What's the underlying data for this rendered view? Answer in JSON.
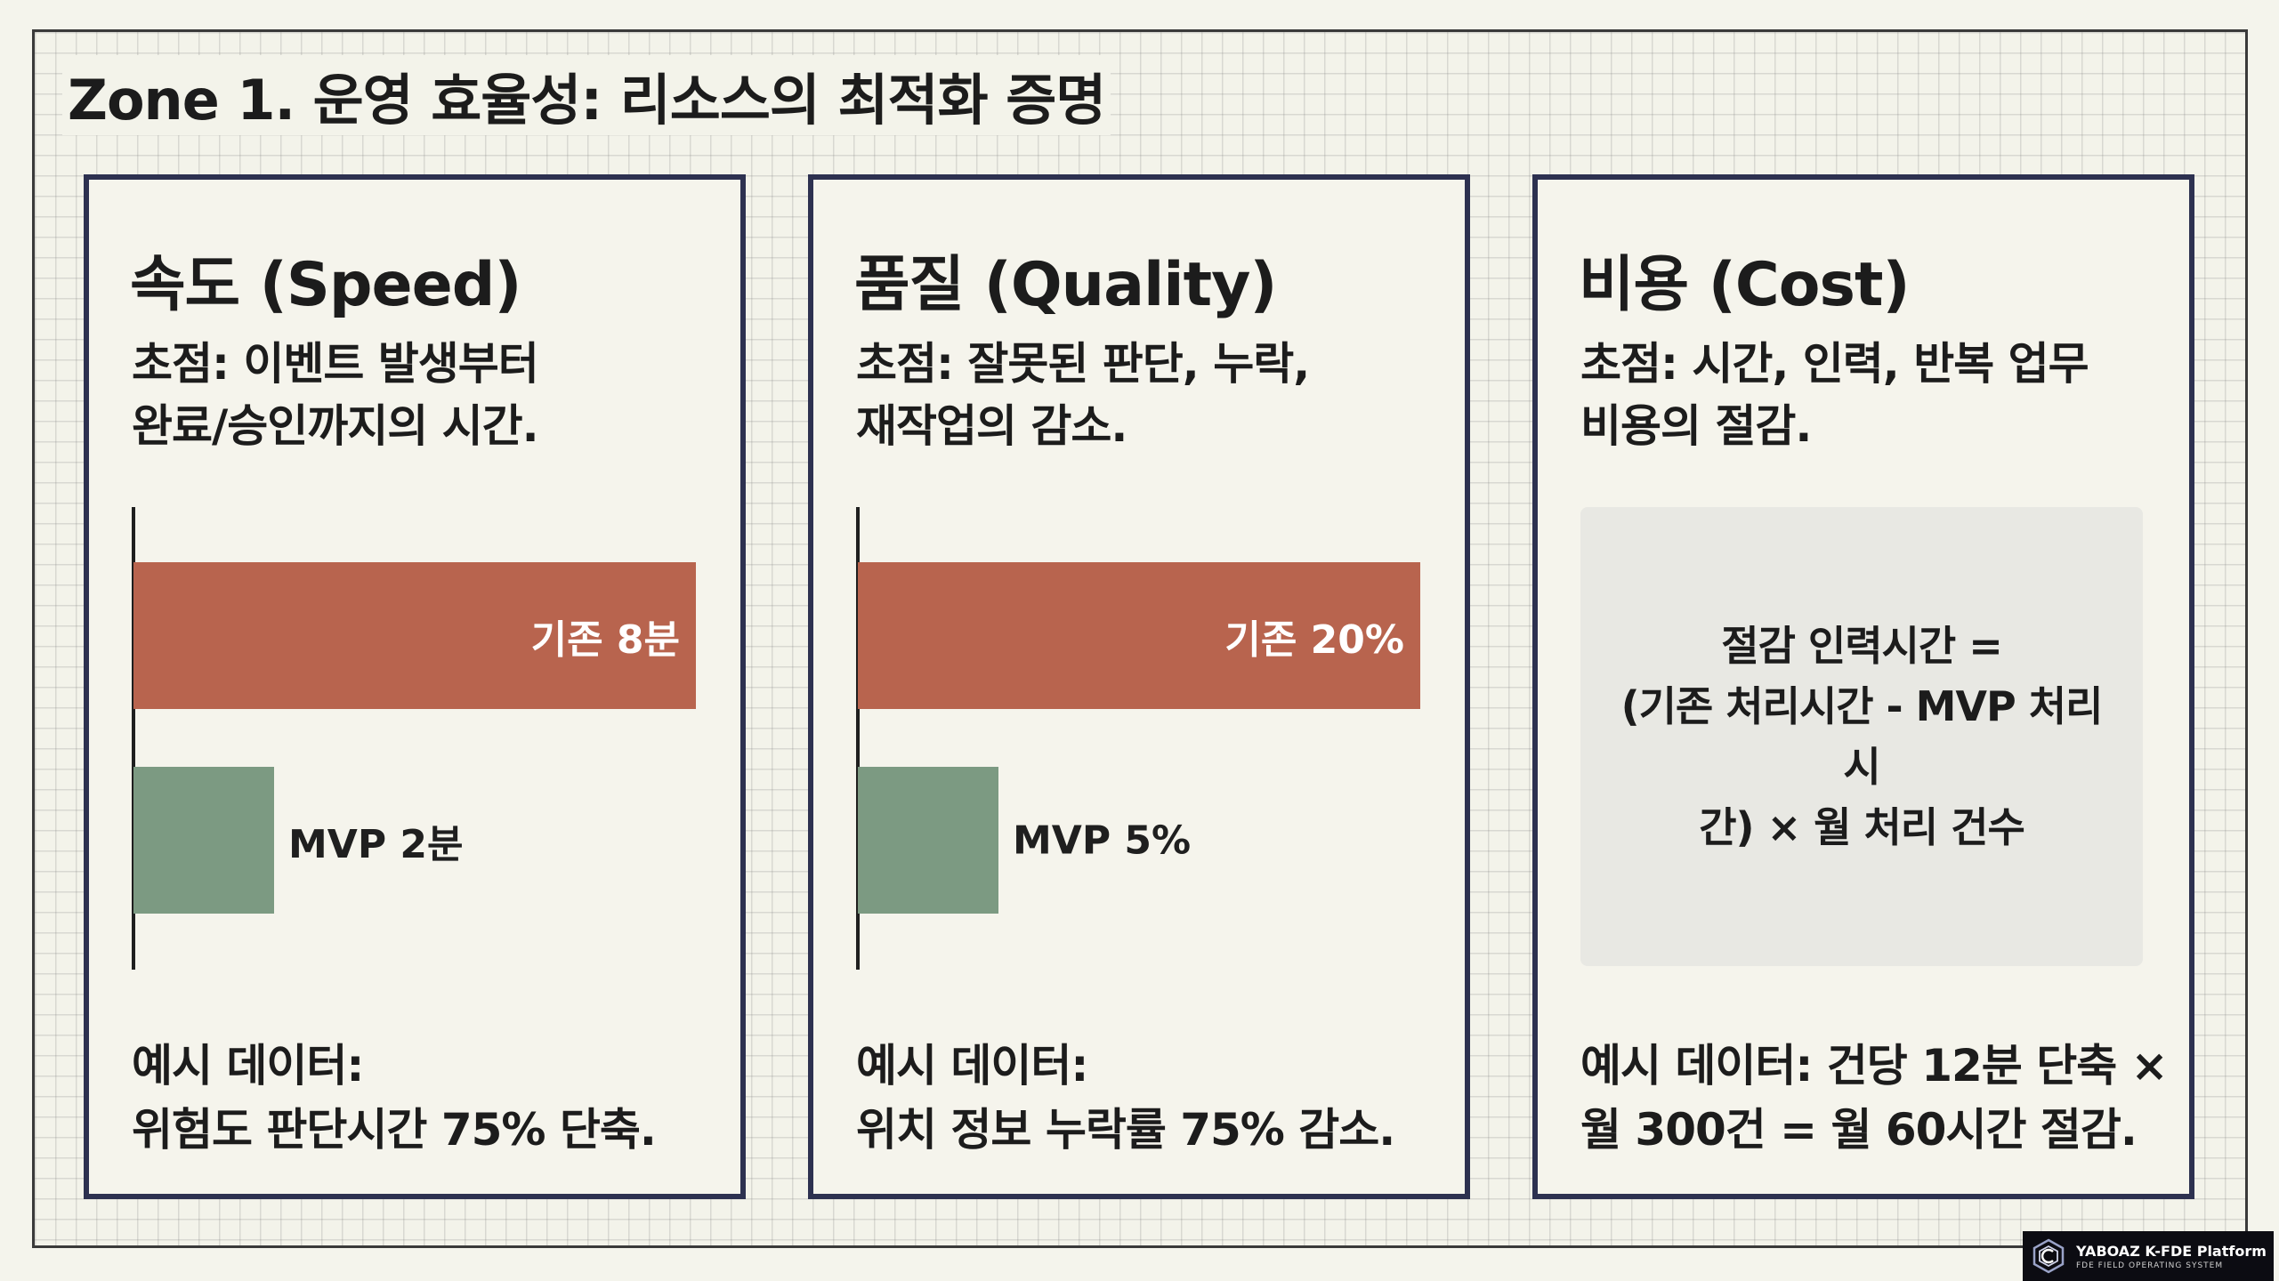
{
  "zone_title": "Zone 1. 운영 효율성: 리소스의 최적화 증명",
  "cards": [
    {
      "title": "속도 (Speed)",
      "focus_line1": "초점: 이벤트 발생부터",
      "focus_line2": "완료/승인까지의 시간.",
      "before_label": "기존 8분",
      "after_label": "MVP 2분",
      "example_line1": "예시 데이터:",
      "example_line2": "위험도 판단시간 75% 단축."
    },
    {
      "title": "품질 (Quality)",
      "focus_line1": "초점: 잘못된 판단, 누락,",
      "focus_line2": "재작업의 감소.",
      "before_label": "기존 20%",
      "after_label": "MVP 5%",
      "example_line1": "예시 데이터:",
      "example_line2": "위치 정보 누락률 75% 감소."
    },
    {
      "title": "비용 (Cost)",
      "focus_line1": "초점: 시간, 인력, 반복 업무",
      "focus_line2": "비용의 절감.",
      "formula_line1": "절감 인력시간 =",
      "formula_line2": "(기존 처리시간 - MVP 처리시",
      "formula_line3": "간) × 월 처리 건수",
      "example_line1": "예시 데이터: 건당 12분 단축 ×",
      "example_line2": "월 300건 = 월 60시간 절감."
    }
  ],
  "chart_data": [
    {
      "type": "bar",
      "orientation": "horizontal",
      "categories": [
        "기존",
        "MVP"
      ],
      "values": [
        8,
        2
      ],
      "unit": "분",
      "colors": [
        "#b8644e",
        "#7c9a82"
      ]
    },
    {
      "type": "bar",
      "orientation": "horizontal",
      "categories": [
        "기존",
        "MVP"
      ],
      "values": [
        20,
        5
      ],
      "unit": "%",
      "colors": [
        "#b8644e",
        "#7c9a82"
      ]
    }
  ],
  "brand": {
    "name": "YABOAZ K-FDE Platform",
    "subtitle": "FDE FIELD OPERATING SYSTEM",
    "logo_icon": "hexagon-logo-icon"
  }
}
